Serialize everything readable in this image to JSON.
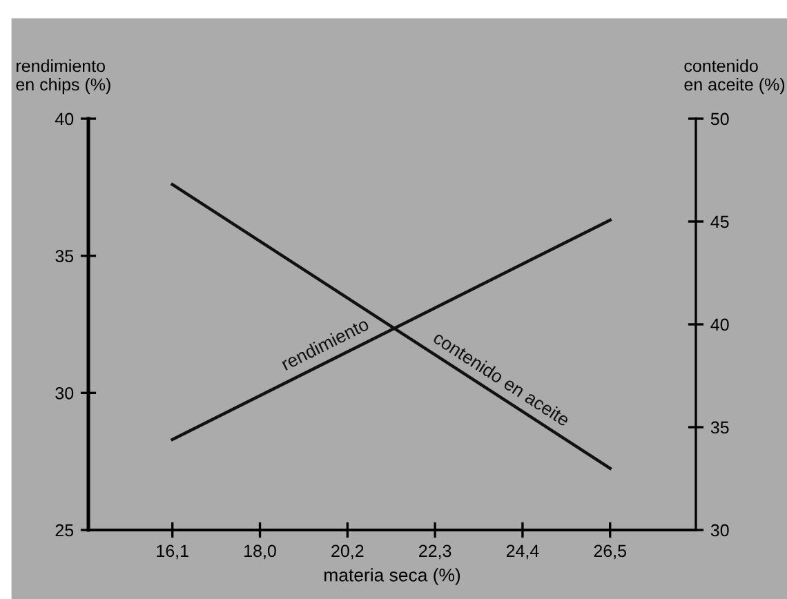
{
  "chart_data": {
    "type": "line",
    "xlabel": "materia seca (%)",
    "ylabel": "rendimiento\nen chips (%)",
    "y2label": "contenido\nen aceite (%)",
    "categories": [
      "16,1",
      "18,0",
      "20,2",
      "22,3",
      "24,4",
      "26,5"
    ],
    "series": [
      {
        "name": "rendimiento",
        "color": "#111111",
        "x": [
          "16,1",
          "26,5"
        ],
        "values": [
          28.3,
          36.3
        ]
      },
      {
        "name": "contenido en aceite",
        "color": "#111111",
        "axis": "y2",
        "x": [
          "16,1",
          "26,5"
        ],
        "values": [
          46.8,
          33.0
        ]
      }
    ],
    "ylim": [
      25,
      40
    ],
    "yticks": [
      25,
      30,
      35,
      40
    ],
    "y2lim": [
      30,
      50
    ],
    "y2ticks": [
      30,
      35,
      40,
      45,
      50
    ],
    "grid": false,
    "legend": false,
    "marker": "none",
    "line_style": "solid"
  }
}
